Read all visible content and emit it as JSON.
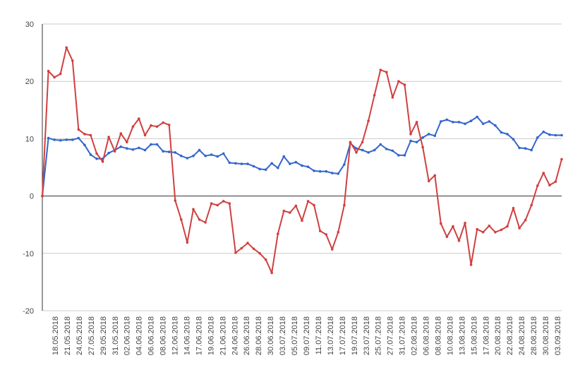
{
  "chart_data": {
    "type": "line",
    "title": "",
    "xlabel": "",
    "ylabel": "",
    "ylim": [
      -20,
      30
    ],
    "yticks": [
      -20,
      -10,
      0,
      10,
      20,
      30
    ],
    "grid": true,
    "legend": "none",
    "x_tick_labels": [
      "18.05.2018",
      "21.05.2018",
      "24.05.2018",
      "27.05.2018",
      "29.05.2018",
      "31.05.2018",
      "02.06.2018",
      "04.06.2018",
      "06.06.2018",
      "08.06.2018",
      "12.06.2018",
      "14.06.2018",
      "17.06.2018",
      "19.06.2018",
      "21.06.2018",
      "24.06.2018",
      "26.06.2018",
      "28.06.2018",
      "30.06.2018",
      "03.07.2018",
      "05.07.2018",
      "09.07.2018",
      "11.07.2018",
      "13.07.2018",
      "17.07.2018",
      "19.07.2018",
      "23.07.2018",
      "25.07.2018",
      "27.07.2018",
      "31.07.2018",
      "02.08.2018",
      "06.08.2018",
      "08.08.2018",
      "10.08.2018",
      "13.08.2018",
      "15.08.2018",
      "17.08.2018",
      "20.08.2018",
      "22.08.2018",
      "24.08.2018",
      "28.08.2018",
      "30.08.2018",
      "03.09.2018"
    ],
    "series": [
      {
        "color": "#3366cc",
        "values": [
          0,
          10.1,
          9.8,
          9.7,
          9.8,
          9.8,
          10.1,
          8.9,
          7.2,
          6.5,
          6.5,
          7.5,
          8.0,
          8.6,
          8.3,
          8.1,
          8.4,
          8.0,
          9.0,
          9.0,
          7.8,
          7.7,
          7.6,
          7.0,
          6.6,
          7.0,
          8.0,
          7.0,
          7.2,
          6.9,
          7.4,
          5.8,
          5.7,
          5.6,
          5.6,
          5.2,
          4.7,
          4.6,
          5.7,
          4.9,
          6.9,
          5.6,
          5.9,
          5.3,
          5.1,
          4.4,
          4.3,
          4.3,
          4.0,
          3.9,
          5.5,
          9.2,
          8.3,
          8.0,
          7.6,
          8.0,
          9.0,
          8.2,
          7.9,
          7.1,
          7.1,
          9.6,
          9.4,
          10.2,
          10.8,
          10.5,
          13.0,
          13.3,
          12.9,
          12.9,
          12.6,
          13.1,
          13.8,
          12.6,
          13.0,
          12.3,
          11.1,
          10.8,
          9.9,
          8.4,
          8.3,
          8.0,
          10.2,
          11.2,
          10.7,
          10.6,
          10.6
        ]
      },
      {
        "color": "#d04040",
        "values": [
          0,
          21.8,
          20.7,
          21.3,
          25.9,
          23.6,
          11.6,
          10.8,
          10.6,
          7.4,
          6.0,
          10.3,
          7.8,
          10.9,
          9.4,
          12.1,
          13.5,
          10.6,
          12.3,
          12.1,
          12.8,
          12.4,
          -0.8,
          -4.1,
          -8.1,
          -2.3,
          -4.1,
          -4.6,
          -1.3,
          -1.6,
          -0.9,
          -1.3,
          -9.9,
          -9.1,
          -8.2,
          -9.2,
          -10.0,
          -11.1,
          -13.4,
          -6.6,
          -2.6,
          -2.9,
          -1.7,
          -4.3,
          -0.9,
          -1.6,
          -6.1,
          -6.7,
          -9.3,
          -6.3,
          -1.6,
          9.4,
          7.6,
          9.4,
          13.1,
          17.6,
          22.0,
          21.6,
          17.2,
          20.0,
          19.4,
          10.8,
          12.9,
          8.5,
          2.6,
          3.6,
          -4.8,
          -7.1,
          -5.3,
          -7.8,
          -4.7,
          -12.0,
          -5.8,
          -6.3,
          -5.2,
          -6.3,
          -5.9,
          -5.3,
          -2.1,
          -5.6,
          -4.2,
          -1.6,
          1.8,
          4.0,
          1.9,
          2.5,
          6.4
        ]
      }
    ]
  }
}
